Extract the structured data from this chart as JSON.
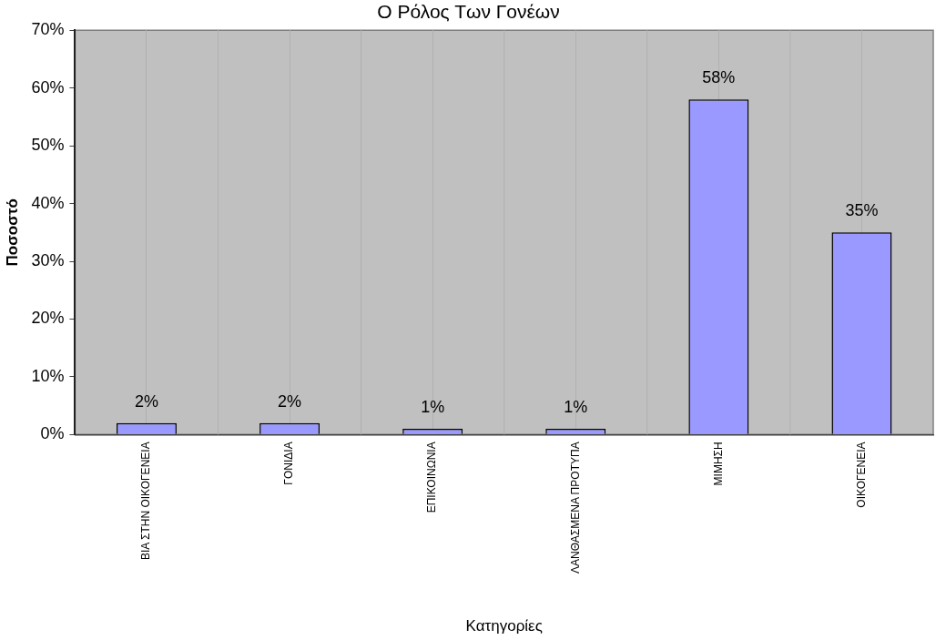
{
  "chart_data": {
    "type": "bar",
    "title": "Ο Ρόλος Των Γονέων",
    "xlabel": "Κατηγορίες",
    "ylabel": "Ποσοστό",
    "categories": [
      "ΒΙΑ ΣΤΗΝ ΟΙΚΟΓΕΝΕΙΑ",
      "ΓΟΝΙΔΙΑ",
      "ΕΠΙΚΟΙΝΩΝΙΑ",
      "ΛΑΝΘΑΣΜΕΝΑ ΠΡΟΤΥΠΑ",
      "ΜΙΜΗΣΗ",
      "ΟΙΚΟΓΕΝΕΙΑ"
    ],
    "values": [
      2,
      2,
      1,
      1,
      58,
      35
    ],
    "color": "#9999ff",
    "value_labels": [
      "2%",
      "2%",
      "1%",
      "1%",
      "58%",
      "35%"
    ],
    "ylim": [
      0,
      70
    ],
    "yticks": [
      {
        "value": 0,
        "label": "0%"
      },
      {
        "value": 10,
        "label": "10%"
      },
      {
        "value": 20,
        "label": "20%"
      },
      {
        "value": 30,
        "label": "30%"
      },
      {
        "value": 40,
        "label": "40%"
      },
      {
        "value": 50,
        "label": "50%"
      },
      {
        "value": 60,
        "label": "60%"
      },
      {
        "value": 70,
        "label": "70%"
      }
    ],
    "grid": "x"
  }
}
